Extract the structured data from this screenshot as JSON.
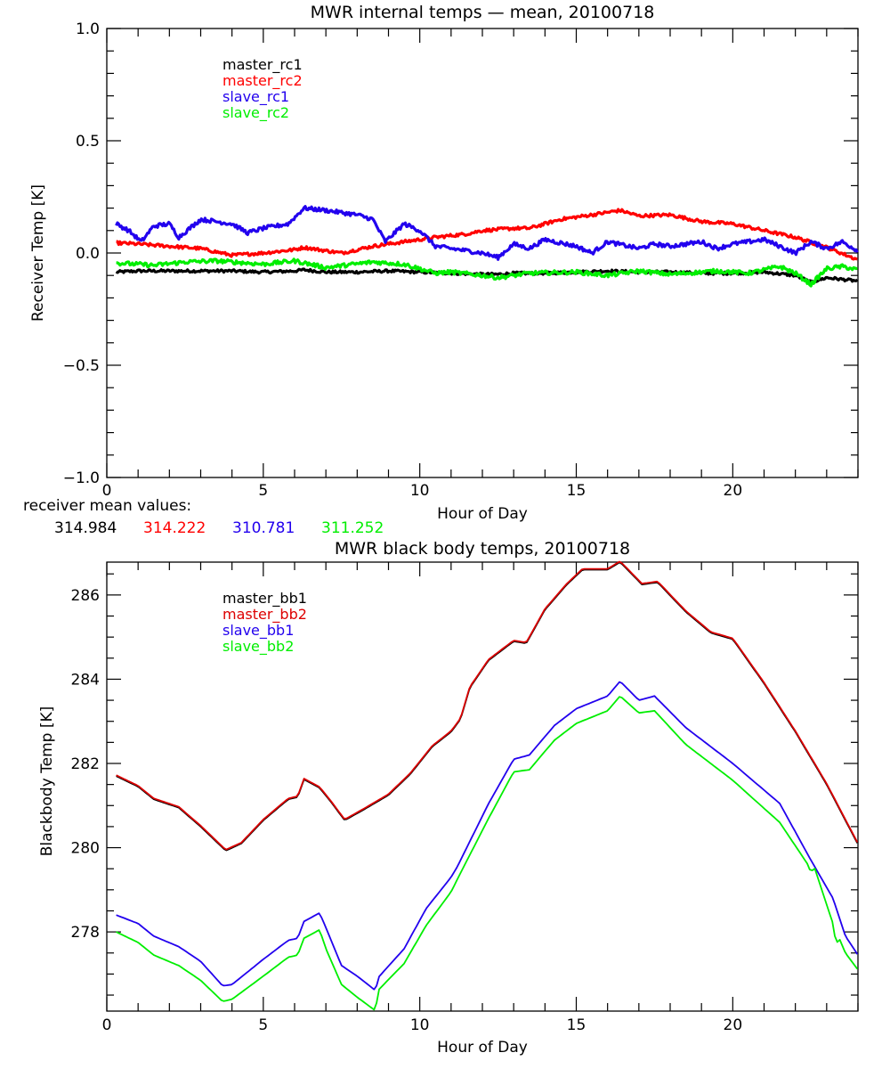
{
  "chart_data": [
    {
      "type": "line",
      "title": "MWR internal temps — mean, 20100718",
      "xlabel": "Hour of Day",
      "ylabel": "Receiver Temp [K]",
      "xlim": [
        0,
        24
      ],
      "ylim": [
        -1.0,
        1.0
      ],
      "x_ticks": [
        0,
        5,
        10,
        15,
        20
      ],
      "x_tick_labels": [
        "0",
        "5",
        "10",
        "15",
        "20"
      ],
      "x_minor_step": 1,
      "y_ticks": [
        -1.0,
        -0.5,
        0.0,
        0.5,
        1.0
      ],
      "y_tick_labels": [
        "−1.0",
        "−0.5",
        "0.0",
        "0.5",
        "1.0"
      ],
      "y_minor_step": 0.1,
      "grid": false,
      "legend_position": "top-left",
      "series": [
        {
          "name": "master_rc1",
          "color": "#000000",
          "noise": 0.006,
          "x": [
            0.3,
            1,
            2,
            3,
            4,
            5,
            6,
            6.3,
            7,
            8,
            9,
            10,
            11,
            12,
            12.5,
            13,
            14,
            15,
            16,
            17,
            18,
            19,
            20,
            21,
            22,
            22.5,
            23,
            24
          ],
          "y": [
            -0.085,
            -0.08,
            -0.08,
            -0.08,
            -0.08,
            -0.085,
            -0.08,
            -0.075,
            -0.085,
            -0.085,
            -0.08,
            -0.085,
            -0.09,
            -0.095,
            -0.095,
            -0.09,
            -0.09,
            -0.085,
            -0.08,
            -0.085,
            -0.085,
            -0.09,
            -0.09,
            -0.085,
            -0.1,
            -0.13,
            -0.11,
            -0.125
          ]
        },
        {
          "name": "master_rc2",
          "color": "#ff0000",
          "noise": 0.007,
          "x": [
            0.3,
            1,
            2,
            3,
            4,
            5,
            6,
            6.3,
            7,
            7.5,
            8.5,
            9.5,
            10.5,
            11.5,
            12,
            13,
            13.5,
            14,
            14.5,
            15.5,
            16.4,
            17,
            18,
            19,
            20,
            21,
            22,
            23,
            24
          ],
          "y": [
            0.045,
            0.04,
            0.03,
            0.02,
            -0.01,
            0.0,
            0.015,
            0.025,
            0.01,
            0.0,
            0.03,
            0.05,
            0.07,
            0.085,
            0.1,
            0.11,
            0.11,
            0.13,
            0.15,
            0.17,
            0.19,
            0.165,
            0.17,
            0.14,
            0.13,
            0.1,
            0.07,
            0.025,
            -0.03
          ]
        },
        {
          "name": "slave_rc1",
          "color": "#2200ee",
          "noise": 0.009,
          "x": [
            0.3,
            0.7,
            1.1,
            1.5,
            2,
            2.3,
            3,
            4,
            4.5,
            5,
            5.8,
            6.3,
            7,
            8,
            8.5,
            8.9,
            9.5,
            10,
            10.5,
            11,
            12,
            12.5,
            13,
            13.5,
            14,
            15,
            15.5,
            16,
            17,
            17.5,
            18,
            19,
            19.5,
            20,
            21,
            21.5,
            22,
            22.5,
            23,
            23.5,
            24
          ],
          "y": [
            0.13,
            0.1,
            0.05,
            0.12,
            0.13,
            0.07,
            0.15,
            0.13,
            0.09,
            0.11,
            0.13,
            0.2,
            0.19,
            0.17,
            0.15,
            0.05,
            0.13,
            0.1,
            0.03,
            0.02,
            0.0,
            -0.02,
            0.04,
            0.02,
            0.06,
            0.03,
            0.0,
            0.05,
            0.02,
            0.04,
            0.03,
            0.05,
            0.02,
            0.04,
            0.06,
            0.03,
            0.0,
            0.05,
            0.02,
            0.05,
            0.01
          ]
        },
        {
          "name": "slave_rc2",
          "color": "#00ee00",
          "noise": 0.009,
          "x": [
            0.3,
            1,
            1.5,
            2.5,
            3.5,
            5,
            6,
            7,
            8.5,
            9.5,
            10.5,
            11,
            12,
            12.5,
            13.5,
            15,
            16,
            17,
            18,
            19.5,
            20.5,
            21.5,
            22,
            22.5,
            23,
            23.5,
            24
          ],
          "y": [
            -0.045,
            -0.05,
            -0.055,
            -0.04,
            -0.035,
            -0.05,
            -0.035,
            -0.065,
            -0.04,
            -0.05,
            -0.09,
            -0.085,
            -0.1,
            -0.11,
            -0.09,
            -0.085,
            -0.1,
            -0.08,
            -0.095,
            -0.08,
            -0.09,
            -0.06,
            -0.09,
            -0.14,
            -0.07,
            -0.06,
            -0.075
          ]
        }
      ],
      "annotation": {
        "label": "receiver mean values:",
        "values": [
          {
            "text": "314.984",
            "color": "#000000"
          },
          {
            "text": "314.222",
            "color": "#ff0000"
          },
          {
            "text": "310.781",
            "color": "#2200ee"
          },
          {
            "text": "311.252",
            "color": "#00ee00"
          }
        ]
      }
    },
    {
      "type": "line",
      "title": "MWR black body temps, 20100718",
      "xlabel": "Hour of Day",
      "ylabel": "Blackbody Temp [K]",
      "xlim": [
        0,
        24
      ],
      "ylim": [
        276.12,
        286.78
      ],
      "x_ticks": [
        0,
        5,
        10,
        15,
        20
      ],
      "x_tick_labels": [
        "0",
        "5",
        "10",
        "15",
        "20"
      ],
      "x_minor_step": 1,
      "y_ticks": [
        278,
        280,
        282,
        284,
        286
      ],
      "y_tick_labels": [
        "278",
        "280",
        "282",
        "284",
        "286"
      ],
      "y_minor_step": 0.5,
      "grid": false,
      "legend_position": "top-left",
      "series": [
        {
          "name": "master_bb1",
          "color": "#000000",
          "noise": 0,
          "x": [
            0.3,
            1,
            1.5,
            2.3,
            3,
            3.8,
            4.3,
            5,
            5.8,
            6.1,
            6.3,
            6.8,
            7.2,
            7.6,
            8.2,
            9,
            9.7,
            10.4,
            11.0,
            11.3,
            11.6,
            12.2,
            13,
            13.4,
            14,
            14.7,
            15.2,
            16,
            16.4,
            17.1,
            17.6,
            18.5,
            19.3,
            20,
            21,
            22,
            23,
            24
          ],
          "y": [
            281.7,
            281.45,
            281.15,
            280.95,
            280.5,
            279.93,
            280.1,
            280.65,
            281.15,
            281.2,
            281.62,
            281.42,
            281.05,
            280.65,
            280.9,
            281.25,
            281.75,
            282.4,
            282.75,
            283.05,
            283.8,
            284.45,
            284.9,
            284.85,
            285.65,
            286.25,
            286.6,
            286.6,
            286.78,
            286.25,
            286.3,
            285.6,
            285.1,
            284.95,
            283.9,
            282.75,
            281.5,
            280.08
          ]
        },
        {
          "name": "master_bb2",
          "color": "#dd0000",
          "noise": 0,
          "x": [
            0.3,
            1,
            1.5,
            2.3,
            3,
            3.8,
            4.3,
            5,
            5.8,
            6.1,
            6.3,
            6.8,
            7.2,
            7.6,
            8.2,
            9,
            9.7,
            10.4,
            11.0,
            11.3,
            11.6,
            12.2,
            13,
            13.4,
            14,
            14.7,
            15.2,
            16,
            16.4,
            17.1,
            17.6,
            18.5,
            19.3,
            20,
            21,
            22,
            23,
            24
          ],
          "y": [
            281.72,
            281.47,
            281.17,
            280.97,
            280.52,
            279.95,
            280.12,
            280.67,
            281.17,
            281.22,
            281.64,
            281.44,
            281.07,
            280.67,
            280.92,
            281.27,
            281.77,
            282.42,
            282.77,
            283.07,
            283.82,
            284.47,
            284.92,
            284.87,
            285.67,
            286.27,
            286.62,
            286.62,
            286.8,
            286.27,
            286.32,
            285.62,
            285.12,
            284.97,
            283.92,
            282.77,
            281.52,
            280.1
          ]
        },
        {
          "name": "slave_bb1",
          "color": "#2200ee",
          "noise": 0,
          "x": [
            0.3,
            1,
            1.5,
            2.3,
            3,
            3.7,
            4,
            5,
            5.8,
            6.1,
            6.3,
            6.8,
            7.0,
            7.5,
            8,
            8.6,
            8.65,
            9.5,
            10.2,
            11.0,
            11.2,
            12.2,
            13,
            13.5,
            14.3,
            15,
            16,
            16.4,
            17,
            17.5,
            18.5,
            20,
            21.5,
            22.5,
            23.2,
            23.6,
            24
          ],
          "y": [
            278.4,
            278.2,
            277.9,
            277.65,
            277.3,
            276.72,
            276.75,
            277.35,
            277.8,
            277.85,
            278.25,
            278.45,
            278.1,
            277.2,
            276.95,
            276.6,
            276.9,
            277.6,
            278.55,
            279.3,
            279.55,
            281.05,
            282.1,
            282.2,
            282.9,
            283.3,
            283.6,
            283.95,
            283.5,
            283.6,
            282.85,
            282.0,
            281.05,
            279.7,
            278.8,
            277.9,
            277.45
          ]
        },
        {
          "name": "slave_bb2",
          "color": "#00ee00",
          "noise": 0,
          "x": [
            0.3,
            1,
            1.5,
            2.3,
            3,
            3.7,
            4,
            5,
            5.8,
            6.1,
            6.3,
            6.8,
            7.0,
            7.5,
            8,
            8.6,
            8.65,
            9.5,
            10.2,
            11.0,
            11.2,
            12.2,
            13,
            13.5,
            14.3,
            15,
            16,
            16.4,
            17,
            17.5,
            18.5,
            20,
            21.5,
            22.4,
            22.5,
            22.6,
            23.2,
            23.3,
            23.4,
            23.6,
            24
          ],
          "y": [
            278.0,
            277.75,
            277.45,
            277.2,
            276.85,
            276.35,
            276.4,
            276.95,
            277.4,
            277.45,
            277.85,
            278.05,
            277.6,
            276.75,
            276.45,
            276.12,
            276.6,
            277.25,
            278.15,
            278.95,
            279.25,
            280.7,
            281.8,
            281.85,
            282.55,
            282.95,
            283.25,
            283.6,
            283.2,
            283.25,
            282.45,
            281.6,
            280.6,
            279.6,
            279.4,
            279.55,
            278.2,
            277.7,
            277.85,
            277.5,
            277.1
          ]
        }
      ]
    }
  ]
}
